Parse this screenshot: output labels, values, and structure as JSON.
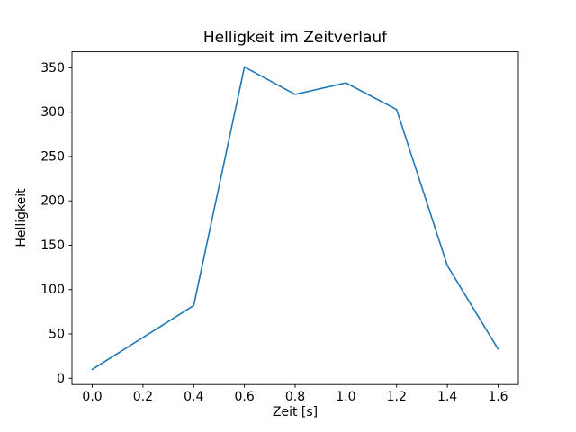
{
  "chart_data": {
    "type": "line",
    "title": "Helligkeit im Zeitverlauf",
    "xlabel": "Zeit [s]",
    "ylabel": "Helligkeit",
    "x": [
      0.0,
      0.2,
      0.4,
      0.6,
      0.8,
      1.0,
      1.2,
      1.4,
      1.6
    ],
    "y": [
      10,
      46,
      82,
      351,
      320,
      333,
      303,
      127,
      33
    ],
    "xlim": [
      -0.08,
      1.68
    ],
    "ylim": [
      -7.05,
      368.05
    ],
    "xticks": [
      0.0,
      0.2,
      0.4,
      0.6,
      0.8,
      1.0,
      1.2,
      1.4,
      1.6
    ],
    "xtick_labels": [
      "0.0",
      "0.2",
      "0.4",
      "0.6",
      "0.8",
      "1.0",
      "1.2",
      "1.4",
      "1.6"
    ],
    "yticks": [
      0,
      50,
      100,
      150,
      200,
      250,
      300,
      350
    ],
    "ytick_labels": [
      "0",
      "50",
      "100",
      "150",
      "200",
      "250",
      "300",
      "350"
    ],
    "line_color": "#1f77b4",
    "axis_color": "#000000",
    "background_color": "#ffffff",
    "grid": false,
    "legend": null
  }
}
